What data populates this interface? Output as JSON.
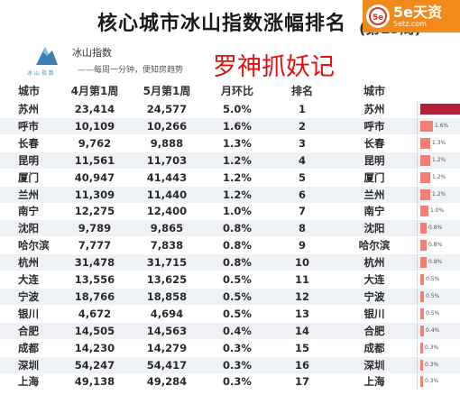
{
  "title": "核心城市冰山指数涨幅排名",
  "title_suffix": "(第19周)",
  "badge": {
    "icon": "5e",
    "text": "5e天资",
    "sub": "5etz.com"
  },
  "brand": {
    "name": "冰山指数",
    "slogan": "——每周一分钟，便知房趋势",
    "logo_text": "冰 山 指 数"
  },
  "watermark": "罗神抓妖记",
  "colors": {
    "bar_top": "#b5203a",
    "bar": "#f07f74",
    "row_stripe": "#eef1f5",
    "watermark": "#e01010"
  },
  "headers": {
    "city": "城市",
    "apr": "4月第1周",
    "may": "5月第1周",
    "mom": "月环比",
    "rank": "排名",
    "city2": "城市"
  },
  "rows": [
    {
      "city": "苏州",
      "apr": "23,414",
      "may": "24,577",
      "mom": "5.0%",
      "rank": "1",
      "bar_label": "",
      "pct": 5.0
    },
    {
      "city": "呼市",
      "apr": "10,109",
      "may": "10,266",
      "mom": "1.6%",
      "rank": "2",
      "bar_label": "1.6%",
      "pct": 1.6
    },
    {
      "city": "长春",
      "apr": "9,762",
      "may": "9,888",
      "mom": "1.3%",
      "rank": "3",
      "bar_label": "1.3%",
      "pct": 1.3
    },
    {
      "city": "昆明",
      "apr": "11,561",
      "may": "11,703",
      "mom": "1.2%",
      "rank": "4",
      "bar_label": "1.2%",
      "pct": 1.2
    },
    {
      "city": "厦门",
      "apr": "40,947",
      "may": "41,443",
      "mom": "1.2%",
      "rank": "5",
      "bar_label": "1.2%",
      "pct": 1.2
    },
    {
      "city": "兰州",
      "apr": "11,309",
      "may": "11,440",
      "mom": "1.2%",
      "rank": "6",
      "bar_label": "1.2%",
      "pct": 1.2
    },
    {
      "city": "南宁",
      "apr": "12,275",
      "may": "12,400",
      "mom": "1.0%",
      "rank": "7",
      "bar_label": "1.0%",
      "pct": 1.0
    },
    {
      "city": "沈阳",
      "apr": "9,789",
      "may": "9,865",
      "mom": "0.8%",
      "rank": "8",
      "bar_label": "0.8%",
      "pct": 0.8
    },
    {
      "city": "哈尔滨",
      "apr": "7,777",
      "may": "7,838",
      "mom": "0.8%",
      "rank": "9",
      "bar_label": "0.8%",
      "pct": 0.8
    },
    {
      "city": "杭州",
      "apr": "31,478",
      "may": "31,715",
      "mom": "0.8%",
      "rank": "10",
      "bar_label": "0.8%",
      "pct": 0.8
    },
    {
      "city": "大连",
      "apr": "13,556",
      "may": "13,625",
      "mom": "0.5%",
      "rank": "11",
      "bar_label": "0.5%",
      "pct": 0.5
    },
    {
      "city": "宁波",
      "apr": "18,766",
      "may": "18,858",
      "mom": "0.5%",
      "rank": "12",
      "bar_label": "0.5%",
      "pct": 0.5
    },
    {
      "city": "银川",
      "apr": "4,672",
      "may": "4,694",
      "mom": "0.5%",
      "rank": "13",
      "bar_label": "0.5%",
      "pct": 0.5
    },
    {
      "city": "合肥",
      "apr": "14,505",
      "may": "14,563",
      "mom": "0.4%",
      "rank": "14",
      "bar_label": "0.4%",
      "pct": 0.4
    },
    {
      "city": "成都",
      "apr": "14,230",
      "may": "14,279",
      "mom": "0.3%",
      "rank": "15",
      "bar_label": "0.3%",
      "pct": 0.3
    },
    {
      "city": "深圳",
      "apr": "54,247",
      "may": "54,417",
      "mom": "0.3%",
      "rank": "16",
      "bar_label": "0.3%",
      "pct": 0.3
    },
    {
      "city": "上海",
      "apr": "49,138",
      "may": "49,284",
      "mom": "0.3%",
      "rank": "17",
      "bar_label": "0.3%",
      "pct": 0.3
    }
  ]
}
